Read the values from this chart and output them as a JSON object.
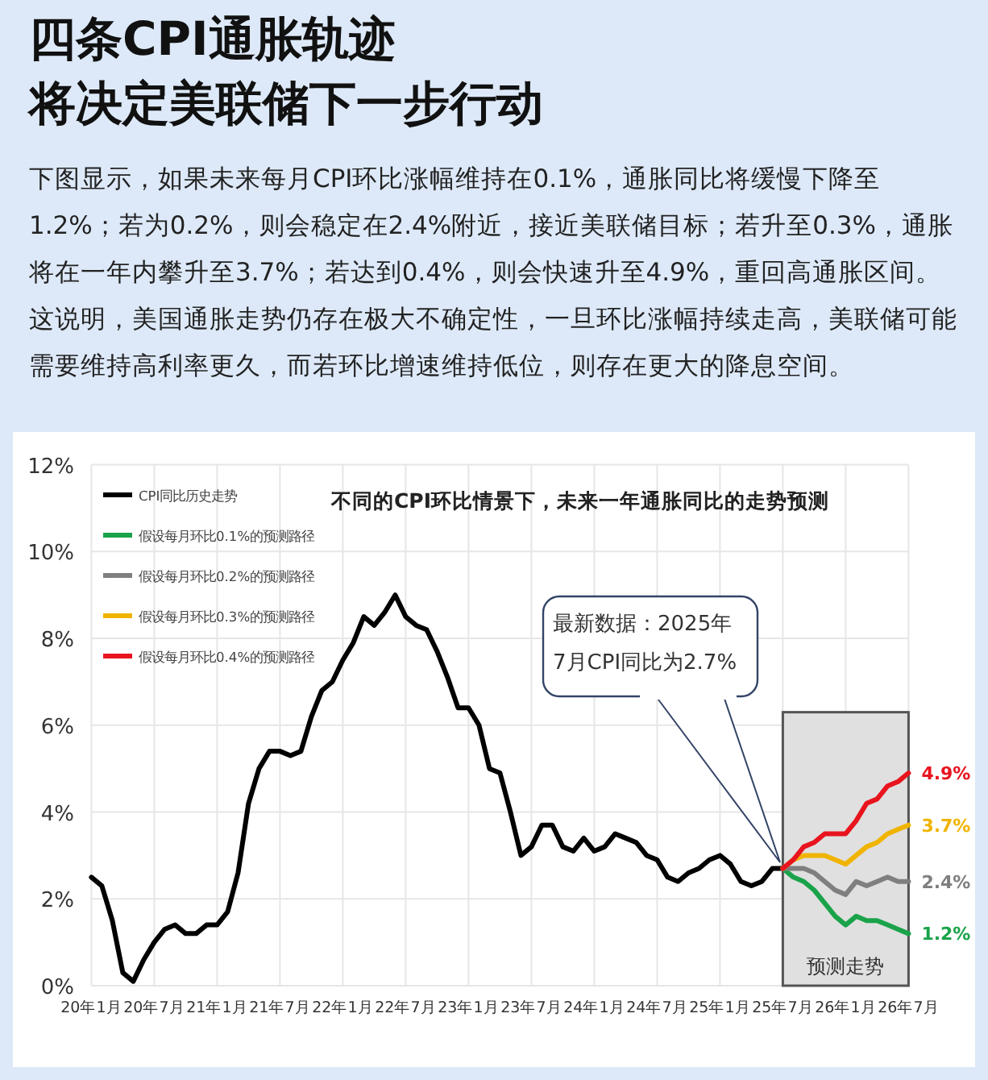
{
  "chart_data": {
    "type": "line",
    "title": "四条CPI通胀轨迹",
    "subtitle": "将决定美联储下一步行动",
    "annotations": [
      "下图显示，如果未来每月CPI环比涨幅维持在0.1%，通胀同比将缓慢下降至1.2%；若为0.2%，则会稳定在2.4%附近，接近美联储目标；若升至0.3%，通胀将在一年内攀升至3.7%；若达到0.4%，则会快速升至4.9%，重回高通胀区间。这说明，美国通胀走势仍存在极大不确定性，一旦环比涨幅持续走高，美联储可能需要维持高利率更久，而若环比增速维持低位，则存在更大的降息空间。",
      "不同的CPI环比情景下，未来一年通胀同比的走势预测",
      "最新数据：2025年7月CPI同比为2.7%"
    ],
    "xlim": [
      "2020-01",
      "2026-07"
    ],
    "xticks": [
      {
        "value": "2020-01",
        "label": "20年1月"
      },
      {
        "value": "2020-07",
        "label": "20年7月"
      },
      {
        "value": "2021-01",
        "label": "21年1月"
      },
      {
        "value": "2021-07",
        "label": "21年7月"
      },
      {
        "value": "2022-01",
        "label": "22年1月"
      },
      {
        "value": "2022-07",
        "label": "22年7月"
      },
      {
        "value": "2023-01",
        "label": "23年1月"
      },
      {
        "value": "2023-07",
        "label": "23年7月"
      },
      {
        "value": "2024-01",
        "label": "24年1月"
      },
      {
        "value": "2024-07",
        "label": "24年7月"
      },
      {
        "value": "2025-01",
        "label": "25年1月"
      },
      {
        "value": "2025-07",
        "label": "25年7月"
      },
      {
        "value": "2026-01",
        "label": "26年1月"
      },
      {
        "value": "2026-07",
        "label": "26年7月"
      }
    ],
    "ylim": [
      0,
      12
    ],
    "yticks": [
      {
        "value": 0,
        "label": "0%"
      },
      {
        "value": 2,
        "label": "2%"
      },
      {
        "value": 4,
        "label": "4%"
      },
      {
        "value": 6,
        "label": "6%"
      },
      {
        "value": 8,
        "label": "8%"
      },
      {
        "value": 10,
        "label": "10%"
      },
      {
        "value": 12,
        "label": "12%"
      }
    ],
    "grid": true,
    "legend": "top left",
    "line_style": "solid",
    "bands": [
      {
        "axis": "x",
        "from": "2025-07",
        "to": "2026-07",
        "label": "预测走势",
        "color": "#e0e0e0"
      }
    ],
    "series": [
      {
        "name": "CPI同比历史走势",
        "color": "#000000",
        "x": [
          "2020-01",
          "2020-02",
          "2020-03",
          "2020-04",
          "2020-05",
          "2020-06",
          "2020-07",
          "2020-08",
          "2020-09",
          "2020-10",
          "2020-11",
          "2020-12",
          "2021-01",
          "2021-02",
          "2021-03",
          "2021-04",
          "2021-05",
          "2021-06",
          "2021-07",
          "2021-08",
          "2021-09",
          "2021-10",
          "2021-11",
          "2021-12",
          "2022-01",
          "2022-02",
          "2022-03",
          "2022-04",
          "2022-05",
          "2022-06",
          "2022-07",
          "2022-08",
          "2022-09",
          "2022-10",
          "2022-11",
          "2022-12",
          "2023-01",
          "2023-02",
          "2023-03",
          "2023-04",
          "2023-05",
          "2023-06",
          "2023-07",
          "2023-08",
          "2023-09",
          "2023-10",
          "2023-11",
          "2023-12",
          "2024-01",
          "2024-02",
          "2024-03",
          "2024-04",
          "2024-05",
          "2024-06",
          "2024-07",
          "2024-08",
          "2024-09",
          "2024-10",
          "2024-11",
          "2024-12",
          "2025-01",
          "2025-02",
          "2025-03",
          "2025-04",
          "2025-05",
          "2025-06",
          "2025-07"
        ],
        "values": [
          2.5,
          2.3,
          1.5,
          0.3,
          0.1,
          0.6,
          1.0,
          1.3,
          1.4,
          1.2,
          1.2,
          1.4,
          1.4,
          1.7,
          2.6,
          4.2,
          5.0,
          5.4,
          5.4,
          5.3,
          5.4,
          6.2,
          6.8,
          7.0,
          7.5,
          7.9,
          8.5,
          8.3,
          8.6,
          9.0,
          8.5,
          8.3,
          8.2,
          7.7,
          7.1,
          6.4,
          6.4,
          6.0,
          5.0,
          4.9,
          4.0,
          3.0,
          3.2,
          3.7,
          3.7,
          3.2,
          3.1,
          3.4,
          3.1,
          3.2,
          3.5,
          3.4,
          3.3,
          3.0,
          2.9,
          2.5,
          2.4,
          2.6,
          2.7,
          2.9,
          3.0,
          2.8,
          2.4,
          2.3,
          2.4,
          2.7,
          2.7
        ]
      },
      {
        "name": "假设每月环比0.1%的预测路径",
        "color": "#1aa34a",
        "x": [
          "2025-07",
          "2025-08",
          "2025-09",
          "2025-10",
          "2025-11",
          "2025-12",
          "2026-01",
          "2026-02",
          "2026-03",
          "2026-04",
          "2026-05",
          "2026-06",
          "2026-07"
        ],
        "values": [
          2.7,
          2.5,
          2.4,
          2.2,
          1.9,
          1.6,
          1.4,
          1.6,
          1.5,
          1.5,
          1.4,
          1.3,
          1.2
        ],
        "value_labels": [
          null,
          null,
          null,
          null,
          null,
          null,
          null,
          null,
          null,
          null,
          null,
          null,
          "1.2%"
        ]
      },
      {
        "name": "假设每月环比0.2%的预测路径",
        "color": "#7f7f7f",
        "x": [
          "2025-07",
          "2025-08",
          "2025-09",
          "2025-10",
          "2025-11",
          "2025-12",
          "2026-01",
          "2026-02",
          "2026-03",
          "2026-04",
          "2026-05",
          "2026-06",
          "2026-07"
        ],
        "values": [
          2.7,
          2.7,
          2.7,
          2.6,
          2.4,
          2.2,
          2.1,
          2.4,
          2.3,
          2.4,
          2.5,
          2.4,
          2.4
        ],
        "value_labels": [
          null,
          null,
          null,
          null,
          null,
          null,
          null,
          null,
          null,
          null,
          null,
          null,
          "2.4%"
        ]
      },
      {
        "name": "假设每月环比0.3%的预测路径",
        "color": "#f0b400",
        "x": [
          "2025-07",
          "2025-08",
          "2025-09",
          "2025-10",
          "2025-11",
          "2025-12",
          "2026-01",
          "2026-02",
          "2026-03",
          "2026-04",
          "2026-05",
          "2026-06",
          "2026-07"
        ],
        "values": [
          2.7,
          2.9,
          3.0,
          3.0,
          3.0,
          2.9,
          2.8,
          3.0,
          3.2,
          3.3,
          3.5,
          3.6,
          3.7
        ],
        "value_labels": [
          null,
          null,
          null,
          null,
          null,
          null,
          null,
          null,
          null,
          null,
          null,
          null,
          "3.7%"
        ]
      },
      {
        "name": "假设每月环比0.4%的预测路径",
        "color": "#e8141e",
        "x": [
          "2025-07",
          "2025-08",
          "2025-09",
          "2025-10",
          "2025-11",
          "2025-12",
          "2026-01",
          "2026-02",
          "2026-03",
          "2026-04",
          "2026-05",
          "2026-06",
          "2026-07"
        ],
        "values": [
          2.7,
          2.9,
          3.2,
          3.3,
          3.5,
          3.5,
          3.5,
          3.8,
          4.2,
          4.3,
          4.6,
          4.7,
          4.9
        ],
        "value_labels": [
          null,
          null,
          null,
          null,
          null,
          null,
          null,
          null,
          null,
          null,
          null,
          null,
          "4.9%"
        ]
      }
    ]
  }
}
